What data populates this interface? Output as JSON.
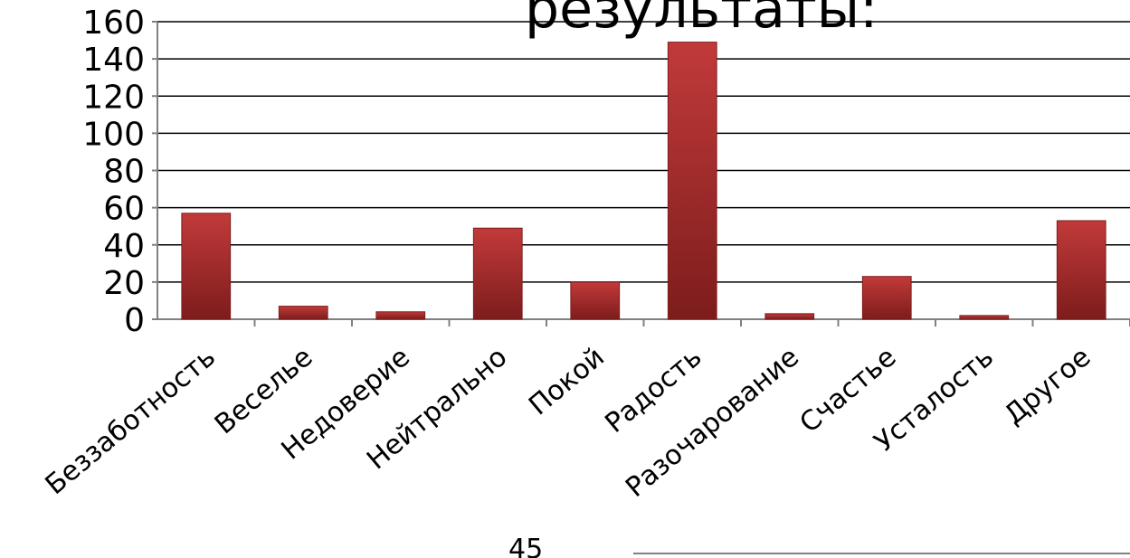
{
  "header": {
    "title_fragment": "результаты:"
  },
  "footer": {
    "fragment_number": "45"
  },
  "colors": {
    "bar": "#a52a2a",
    "bar_light": "#c23a3a",
    "bar_dark": "#7d1c1c",
    "grid": "#000000",
    "axis": "#808080"
  },
  "chart_data": {
    "type": "bar",
    "categories": [
      "Беззаботность",
      "Веселье",
      "Недоверие",
      "Нейтрально",
      "Покой",
      "Радость",
      "Разочарование",
      "Счастье",
      "Усталость",
      "Другое"
    ],
    "values": [
      57,
      7,
      4,
      49,
      20,
      149,
      3,
      23,
      2,
      53
    ],
    "title": "",
    "xlabel": "",
    "ylabel": "",
    "ylim": [
      0,
      160
    ],
    "yticks": [
      0,
      20,
      40,
      60,
      80,
      100,
      120,
      140,
      160
    ],
    "grid": true,
    "legend": "none"
  }
}
